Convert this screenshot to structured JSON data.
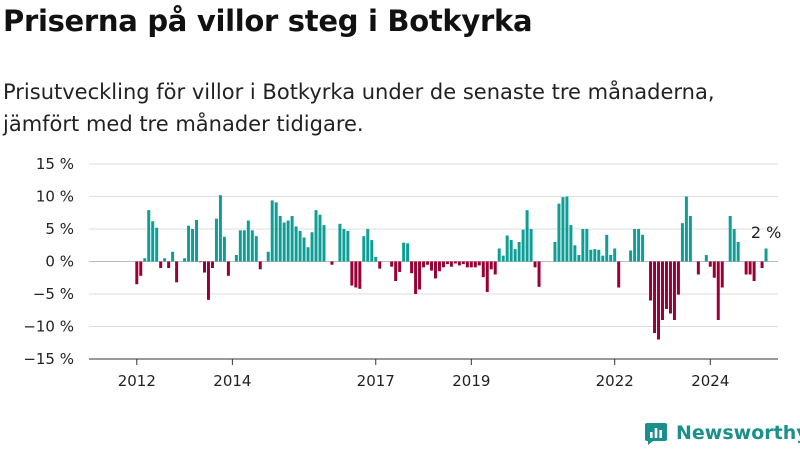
{
  "header": {
    "title": "Priserna på villor steg i Botkyrka",
    "subtitle": "Prisutveckling för villor i Botkyrka under de senaste tre månaderna, jämfört med tre månader tidigare."
  },
  "brand": {
    "name": "Newsworthy",
    "icon": "newsworthy-logo-icon",
    "color": "#1b8f8a"
  },
  "colors": {
    "positive": "#0f9e96",
    "negative": "#9a0036",
    "grid": "#dddddd",
    "axis": "#333333"
  },
  "chart_data": {
    "type": "bar",
    "unit": "%",
    "ylim": [
      -15,
      15
    ],
    "yticks": [
      15,
      10,
      5,
      0,
      -5,
      -10,
      -15
    ],
    "ytick_labels": [
      "15 %",
      "10 %",
      "5 %",
      "0 %",
      "−5 %",
      "−10 %",
      "−15 %"
    ],
    "grid": true,
    "x_start": "2011-01",
    "x_end": "2025-06",
    "x_ticks": [
      {
        "date": "2012-01",
        "label": "2012"
      },
      {
        "date": "2014-01",
        "label": "2014"
      },
      {
        "date": "2017-01",
        "label": "2017"
      },
      {
        "date": "2019-01",
        "label": "2019"
      },
      {
        "date": "2022-01",
        "label": "2022"
      },
      {
        "date": "2024-01",
        "label": "2024"
      }
    ],
    "annotation": {
      "text": "2 %",
      "date": "2025-03"
    },
    "series": [
      {
        "start": "2012-01",
        "values": [
          -3.5,
          -2.2,
          0.5,
          7.9,
          6.2,
          5.2,
          -1.0,
          0.5,
          -1.0,
          1.5,
          -3.2,
          0.0,
          0.5,
          5.5,
          5.0,
          6.4,
          -0.1,
          -1.7,
          -5.9,
          -1.0,
          6.6,
          10.2,
          3.8,
          -2.2,
          0.0,
          1.0,
          4.8,
          4.8,
          6.3,
          4.8,
          3.9,
          -1.2,
          0.0,
          1.5,
          9.4,
          9.1,
          7.0,
          6.0,
          6.3,
          7.0,
          5.4,
          4.7,
          3.7,
          2.2,
          4.5,
          7.9,
          7.2,
          5.6,
          0.0,
          -0.5,
          0.0,
          5.8,
          5.0,
          4.7,
          -3.7,
          -4.0,
          -4.2,
          3.9,
          5.0,
          3.3,
          0.7,
          -1.1,
          0.0,
          0.0,
          -0.8,
          -3.0,
          -1.6,
          2.9,
          2.8,
          -1.8,
          -5.0,
          -4.3,
          -0.9,
          -0.5,
          -1.4,
          -2.6,
          -1.5,
          -0.9,
          -0.4,
          -0.8,
          -0.3,
          -0.6,
          -0.4,
          -0.9,
          -0.9,
          -0.9,
          -0.6,
          -2.4,
          -4.7,
          -1.2,
          -2.0,
          2.0,
          0.9,
          4.0,
          3.3,
          1.9,
          3.0,
          4.9,
          7.9,
          5.0,
          -0.9,
          -3.9,
          0.0,
          0.0,
          0.0,
          3.0,
          8.9,
          9.9,
          10.0,
          5.6,
          2.5,
          1.0,
          5.0,
          5.0,
          1.8,
          1.9,
          1.8,
          0.9,
          4.1,
          1.0,
          2.0,
          -4.0,
          0.0,
          0.0,
          1.7,
          5.0,
          5.0,
          4.1,
          0.0,
          -6.0,
          -11.0,
          -12.0,
          -9.0,
          -7.3,
          -8.0,
          -9.0,
          -5.1,
          5.9,
          10.0,
          7.0,
          0.0,
          -2.0,
          0.0,
          1.0,
          -0.8,
          -2.5,
          -9.0,
          -4.0,
          0.0,
          7.0,
          5.0,
          3.0,
          0.0,
          -2.0,
          -2.0,
          -3.0,
          0.0,
          -1.0,
          2.0
        ]
      }
    ]
  }
}
